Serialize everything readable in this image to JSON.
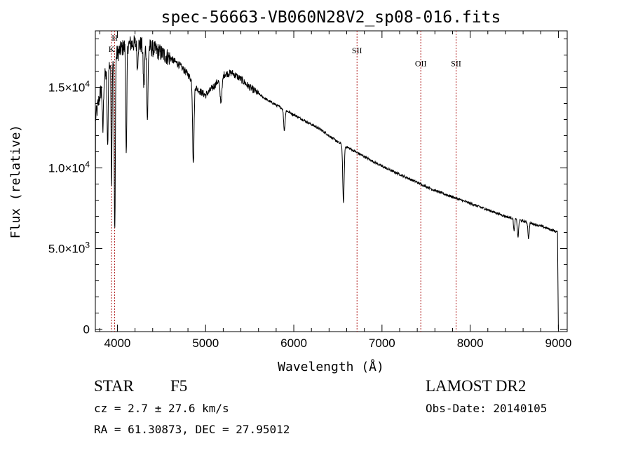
{
  "chart_data": {
    "type": "line",
    "title": "spec-56663-VB060N28V2_sp08-016.fits",
    "xlabel": "Wavelength (Å)",
    "ylabel": "Flux (relative)",
    "xlim": [
      3750,
      9100
    ],
    "ylim": [
      -150,
      18500
    ],
    "xticks": [
      4000,
      5000,
      6000,
      7000,
      8000,
      9000
    ],
    "xtick_labels": [
      "4000",
      "5000",
      "6000",
      "7000",
      "8000",
      "9000"
    ],
    "yticks": [
      0,
      5000,
      10000,
      15000
    ],
    "ytick_labels": [
      {
        "mant": "0",
        "exp": ""
      },
      {
        "mant": "5.0×10",
        "exp": "3"
      },
      {
        "mant": "1.0×10",
        "exp": "4"
      },
      {
        "mant": "1.5×10",
        "exp": "4"
      }
    ],
    "continuum": [
      [
        3750,
        13000
      ],
      [
        3800,
        14500
      ],
      [
        3850,
        15500
      ],
      [
        3900,
        16300
      ],
      [
        3950,
        16800
      ],
      [
        4000,
        17100
      ],
      [
        4050,
        17400
      ],
      [
        4100,
        17600
      ],
      [
        4150,
        17700
      ],
      [
        4200,
        17700
      ],
      [
        4300,
        17600
      ],
      [
        4400,
        17400
      ],
      [
        4500,
        17100
      ],
      [
        4600,
        16800
      ],
      [
        4700,
        16400
      ],
      [
        4800,
        15800
      ],
      [
        4900,
        14900
      ],
      [
        5000,
        14500
      ],
      [
        5100,
        15100
      ],
      [
        5200,
        15800
      ],
      [
        5300,
        15900
      ],
      [
        5400,
        15500
      ],
      [
        5500,
        15000
      ],
      [
        5600,
        14600
      ],
      [
        5700,
        14200
      ],
      [
        5800,
        13900
      ],
      [
        5900,
        13600
      ],
      [
        6000,
        13300
      ],
      [
        6100,
        13000
      ],
      [
        6200,
        12700
      ],
      [
        6300,
        12400
      ],
      [
        6400,
        12000
      ],
      [
        6500,
        11600
      ],
      [
        6600,
        11300
      ],
      [
        6700,
        11000
      ],
      [
        6800,
        10700
      ],
      [
        6900,
        10400
      ],
      [
        7000,
        10100
      ],
      [
        7200,
        9600
      ],
      [
        7400,
        9100
      ],
      [
        7600,
        8600
      ],
      [
        7800,
        8200
      ],
      [
        8000,
        7800
      ],
      [
        8200,
        7400
      ],
      [
        8400,
        7000
      ],
      [
        8600,
        6700
      ],
      [
        8800,
        6400
      ],
      [
        8950,
        6100
      ],
      [
        9000,
        6000
      ]
    ],
    "absorptions": [
      {
        "x": 3835,
        "depth": 3000,
        "w": 6
      },
      {
        "x": 3889,
        "depth": 5000,
        "w": 6
      },
      {
        "x": 3934,
        "depth": 7500,
        "w": 5
      },
      {
        "x": 3970,
        "depth": 11000,
        "w": 6
      },
      {
        "x": 4101,
        "depth": 7000,
        "w": 6
      },
      {
        "x": 4227,
        "depth": 1500,
        "w": 5
      },
      {
        "x": 4300,
        "depth": 2500,
        "w": 8
      },
      {
        "x": 4340,
        "depth": 4500,
        "w": 7
      },
      {
        "x": 4861,
        "depth": 5000,
        "w": 8
      },
      {
        "x": 5175,
        "depth": 1500,
        "w": 12
      },
      {
        "x": 5893,
        "depth": 1300,
        "w": 8
      },
      {
        "x": 6563,
        "depth": 3600,
        "w": 8
      },
      {
        "x": 8498,
        "depth": 800,
        "w": 6
      },
      {
        "x": 8542,
        "depth": 1100,
        "w": 7
      },
      {
        "x": 8662,
        "depth": 1000,
        "w": 7
      }
    ],
    "lines": [
      {
        "x": 3934,
        "label": "K",
        "label_y": 17200
      },
      {
        "x": 3969,
        "label": "H",
        "label_y": 17900
      },
      {
        "x": 6717,
        "label": "SII",
        "label_y": 17100
      },
      {
        "x": 7440,
        "label": "OII",
        "label_y": 16300
      },
      {
        "x": 7840,
        "label": "SII",
        "label_y": 16300
      }
    ],
    "line_color": "#b02020"
  },
  "info": {
    "class": "STAR",
    "subclass": "F5",
    "cz": "cz = 2.7 ± 27.6 km/s",
    "coords": "RA =  61.30873, DEC =  27.95012",
    "survey": "LAMOST DR2",
    "obs_date": "Obs-Date: 20140105"
  }
}
